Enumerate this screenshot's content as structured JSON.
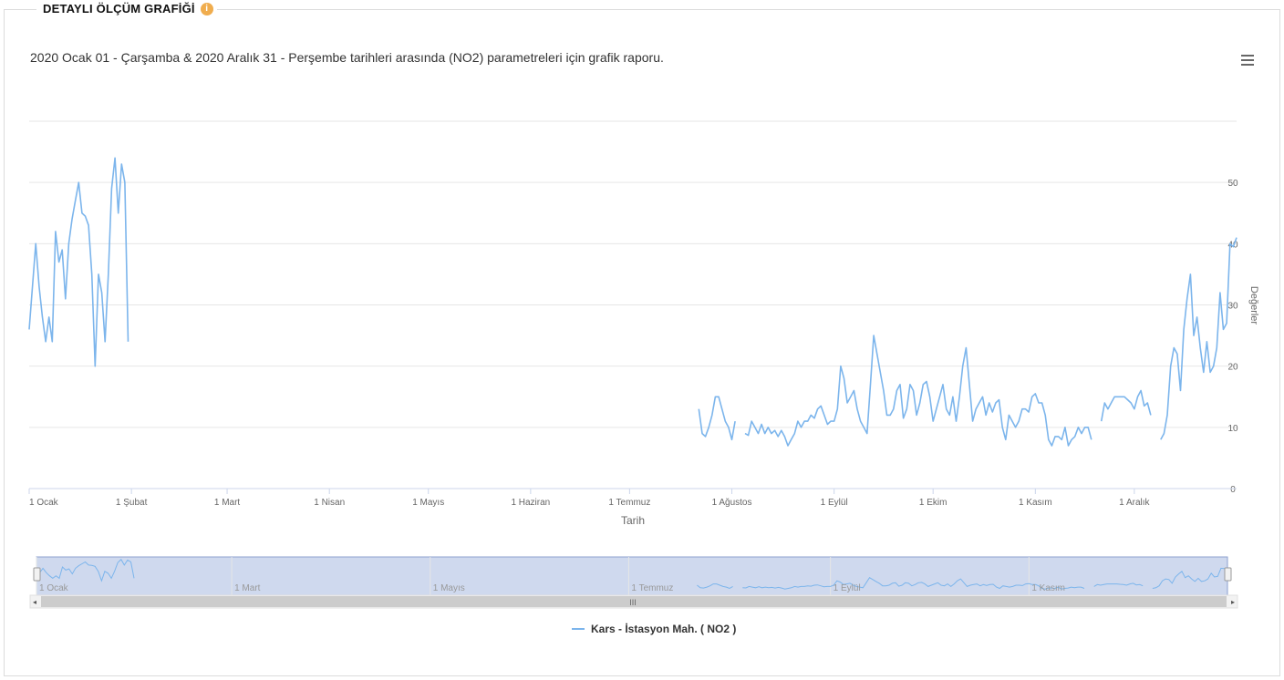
{
  "panel": {
    "title": "DETAYLI ÖLÇÜM GRAFİĞİ"
  },
  "chart_data": {
    "type": "line",
    "title": "2020 Ocak 01 - Çarşamba & 2020 Aralık 31 - Perşembe tarihleri arasında (NO2) parametreleri için grafik raporu.",
    "xlabel": "Tarih",
    "ylabel": "Değerler",
    "ylim": [
      0,
      60
    ],
    "yticks": [
      0,
      10,
      20,
      30,
      40,
      50
    ],
    "xlim": [
      0,
      366
    ],
    "xticks": [
      {
        "label": "1 Ocak",
        "day": 0
      },
      {
        "label": "1 Şubat",
        "day": 31
      },
      {
        "label": "1 Mart",
        "day": 60
      },
      {
        "label": "1 Nisan",
        "day": 91
      },
      {
        "label": "1 Mayıs",
        "day": 121
      },
      {
        "label": "1 Haziran",
        "day": 152
      },
      {
        "label": "1 Temmuz",
        "day": 182
      },
      {
        "label": "1 Ağustos",
        "day": 213
      },
      {
        "label": "1 Eylül",
        "day": 244
      },
      {
        "label": "1 Ekim",
        "day": 274
      },
      {
        "label": "1 Kasım",
        "day": 305
      },
      {
        "label": "1 Aralık",
        "day": 335
      }
    ],
    "navigator_ticks": [
      {
        "label": "1 Ocak",
        "day": 0
      },
      {
        "label": "1 Mart",
        "day": 60
      },
      {
        "label": "1 Mayıs",
        "day": 121
      },
      {
        "label": "1 Temmuz",
        "day": 182
      },
      {
        "label": "1 Eylül",
        "day": 244
      },
      {
        "label": "1 Kasım",
        "day": 305
      }
    ],
    "grid": true,
    "legend": "bottom-center",
    "series": [
      {
        "name": "Kars - İstasyon Mah. ( NO2 )",
        "color": "#7cb5ec",
        "segments": [
          [
            [
              0,
              26
            ],
            [
              2,
              40
            ],
            [
              3,
              33
            ],
            [
              4,
              28
            ],
            [
              5,
              24
            ],
            [
              6,
              28
            ],
            [
              7,
              24
            ],
            [
              8,
              42
            ],
            [
              9,
              37
            ],
            [
              10,
              39
            ],
            [
              11,
              31
            ],
            [
              12,
              40
            ],
            [
              13,
              44
            ],
            [
              14,
              47
            ],
            [
              15,
              50
            ],
            [
              16,
              45
            ],
            [
              17,
              44.5
            ],
            [
              18,
              43
            ],
            [
              19,
              35
            ],
            [
              20,
              20
            ],
            [
              21,
              35
            ],
            [
              22,
              32
            ],
            [
              23,
              24
            ],
            [
              24,
              35
            ],
            [
              25,
              49
            ],
            [
              26,
              54
            ],
            [
              27,
              45
            ],
            [
              28,
              53
            ],
            [
              29,
              50
            ],
            [
              30,
              24
            ]
          ],
          [
            [
              203,
              13
            ],
            [
              204,
              9
            ],
            [
              205,
              8.5
            ],
            [
              206,
              10
            ],
            [
              207,
              12
            ],
            [
              208,
              15
            ],
            [
              209,
              15
            ],
            [
              210,
              13
            ],
            [
              211,
              11
            ],
            [
              212,
              10
            ],
            [
              213,
              8
            ],
            [
              214,
              11
            ]
          ],
          [
            [
              217,
              9
            ],
            [
              218,
              8.7
            ],
            [
              219,
              11
            ],
            [
              220,
              10
            ],
            [
              221,
              9
            ],
            [
              222,
              10.5
            ],
            [
              223,
              9
            ],
            [
              224,
              10
            ],
            [
              225,
              9
            ],
            [
              226,
              9.5
            ],
            [
              227,
              8.5
            ],
            [
              228,
              9.5
            ],
            [
              229,
              8.5
            ],
            [
              230,
              7
            ],
            [
              231,
              8
            ],
            [
              232,
              9
            ],
            [
              233,
              11
            ],
            [
              234,
              10
            ],
            [
              235,
              11
            ],
            [
              236,
              11
            ],
            [
              237,
              12
            ],
            [
              238,
              11.5
            ],
            [
              239,
              13
            ],
            [
              240,
              13.5
            ],
            [
              241,
              12
            ],
            [
              242,
              10.5
            ],
            [
              243,
              11
            ],
            [
              244,
              11
            ],
            [
              245,
              13
            ],
            [
              246,
              20
            ],
            [
              247,
              18
            ],
            [
              248,
              14
            ],
            [
              249,
              15
            ],
            [
              250,
              16
            ],
            [
              251,
              13
            ],
            [
              252,
              11
            ],
            [
              253,
              10
            ],
            [
              254,
              9
            ],
            [
              255,
              17
            ],
            [
              256,
              25
            ],
            [
              257,
              22
            ],
            [
              258,
              19
            ],
            [
              259,
              16
            ],
            [
              260,
              12
            ],
            [
              261,
              12
            ],
            [
              262,
              13
            ],
            [
              263,
              16
            ],
            [
              264,
              17
            ],
            [
              265,
              11.5
            ],
            [
              266,
              13
            ],
            [
              267,
              17
            ],
            [
              268,
              16
            ],
            [
              269,
              12
            ],
            [
              270,
              14
            ],
            [
              271,
              17
            ],
            [
              272,
              17.5
            ],
            [
              273,
              15
            ],
            [
              274,
              11
            ],
            [
              275,
              13
            ],
            [
              276,
              15
            ],
            [
              277,
              17
            ],
            [
              278,
              13
            ],
            [
              279,
              12
            ],
            [
              280,
              15
            ],
            [
              281,
              11
            ],
            [
              282,
              15
            ],
            [
              283,
              20
            ],
            [
              284,
              23
            ],
            [
              285,
              17
            ],
            [
              286,
              11
            ],
            [
              287,
              13
            ],
            [
              288,
              14
            ],
            [
              289,
              15
            ],
            [
              290,
              12
            ],
            [
              291,
              14
            ],
            [
              292,
              12.5
            ],
            [
              293,
              14
            ],
            [
              294,
              14.5
            ],
            [
              295,
              10
            ],
            [
              296,
              8
            ],
            [
              297,
              12
            ],
            [
              298,
              11
            ],
            [
              299,
              10
            ],
            [
              300,
              11
            ],
            [
              301,
              13
            ],
            [
              302,
              13
            ],
            [
              303,
              12.5
            ],
            [
              304,
              15
            ],
            [
              305,
              15.5
            ],
            [
              306,
              14
            ],
            [
              307,
              14
            ],
            [
              308,
              12
            ],
            [
              309,
              8
            ],
            [
              310,
              7
            ],
            [
              311,
              8.5
            ],
            [
              312,
              8.5
            ],
            [
              313,
              8
            ],
            [
              314,
              10
            ],
            [
              315,
              7
            ],
            [
              316,
              8
            ],
            [
              317,
              8.5
            ],
            [
              318,
              10
            ],
            [
              319,
              9
            ],
            [
              320,
              10
            ],
            [
              321,
              10
            ],
            [
              322,
              8
            ]
          ],
          [
            [
              325,
              11
            ],
            [
              326,
              14
            ],
            [
              327,
              13
            ],
            [
              328,
              14
            ],
            [
              329,
              15
            ],
            [
              330,
              15
            ],
            [
              331,
              15
            ],
            [
              332,
              15
            ],
            [
              333,
              14.5
            ],
            [
              334,
              14
            ],
            [
              335,
              13
            ],
            [
              336,
              15
            ],
            [
              337,
              16
            ],
            [
              338,
              13.5
            ],
            [
              339,
              14
            ],
            [
              340,
              12
            ]
          ],
          [
            [
              343,
              8
            ],
            [
              344,
              9
            ],
            [
              345,
              12
            ],
            [
              346,
              20
            ],
            [
              347,
              23
            ],
            [
              348,
              22
            ],
            [
              349,
              16
            ],
            [
              350,
              26
            ],
            [
              351,
              31
            ],
            [
              352,
              35
            ],
            [
              353,
              25
            ],
            [
              354,
              28
            ],
            [
              355,
              23
            ],
            [
              356,
              19
            ],
            [
              357,
              24
            ],
            [
              358,
              19
            ],
            [
              359,
              20
            ],
            [
              360,
              23
            ],
            [
              361,
              32
            ],
            [
              362,
              26
            ],
            [
              363,
              27
            ],
            [
              364,
              40
            ],
            [
              365,
              39.5
            ],
            [
              366,
              41
            ]
          ]
        ]
      }
    ]
  }
}
